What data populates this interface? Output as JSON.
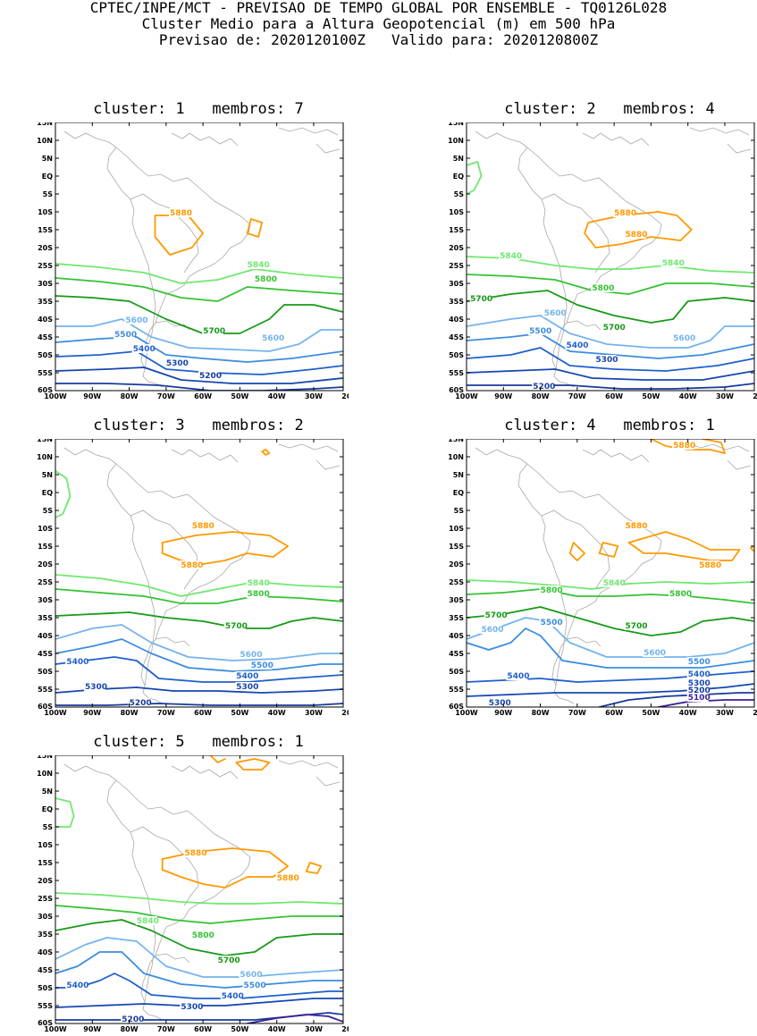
{
  "header": {
    "line1": "CPTEC/INPE/MCT - PREVISAO DE TEMPO GLOBAL POR ENSEMBLE - TQ0126L028",
    "line2": "Cluster Medio para a Altura Geopotencial (m) em 500 hPa",
    "line3": "Previsao de: 2020120100Z   Valido para: 2020120800Z"
  },
  "axes": {
    "lat_labels": [
      "15N",
      "10N",
      "5N",
      "EQ",
      "5S",
      "10S",
      "15S",
      "20S",
      "25S",
      "30S",
      "35S",
      "40S",
      "45S",
      "50S",
      "55S",
      "60S"
    ],
    "lon_labels": [
      "100W",
      "90W",
      "80W",
      "70W",
      "60W",
      "50W",
      "40W",
      "30W",
      "20W"
    ]
  },
  "colors": {
    "5880": "#ff9900",
    "5840": "#6fe86f",
    "5800": "#35c235",
    "5700": "#169a16",
    "5600": "#74b4ee",
    "5500": "#3c8ce0",
    "5400": "#1f5fcc",
    "5300": "#1646b0",
    "5200": "#173a9c",
    "5100": "#3b1f96",
    "coast": "#a8a8a8"
  },
  "panels": [
    {
      "title": "cluster: 1   membros: 7",
      "contour_labels": [
        {
          "text": "5880",
          "level": "5880"
        },
        {
          "text": "5840",
          "level": "5840"
        },
        {
          "text": "5800",
          "level": "5800"
        },
        {
          "text": "5700",
          "level": "5700"
        },
        {
          "text": "5600",
          "level": "5600"
        },
        {
          "text": "5600",
          "level": "5600"
        },
        {
          "text": "5500",
          "level": "5500"
        },
        {
          "text": "5400",
          "level": "5400"
        },
        {
          "text": "5300",
          "level": "5300"
        },
        {
          "text": "5200",
          "level": "5200"
        }
      ]
    },
    {
      "title": "cluster: 2   membros: 4",
      "contour_labels": [
        {
          "text": "5880",
          "level": "5880"
        },
        {
          "text": "5880",
          "level": "5880"
        },
        {
          "text": "5840",
          "level": "5840"
        },
        {
          "text": "5840",
          "level": "5840"
        },
        {
          "text": "5800",
          "level": "5800"
        },
        {
          "text": "5700",
          "level": "5700"
        },
        {
          "text": "5700",
          "level": "5700"
        },
        {
          "text": "5600",
          "level": "5600"
        },
        {
          "text": "5600",
          "level": "5600"
        },
        {
          "text": "5500",
          "level": "5500"
        },
        {
          "text": "5400",
          "level": "5400"
        },
        {
          "text": "5300",
          "level": "5300"
        },
        {
          "text": "5200",
          "level": "5200"
        }
      ]
    },
    {
      "title": "cluster: 3   membros: 2",
      "contour_labels": [
        {
          "text": "5880",
          "level": "5880"
        },
        {
          "text": "5880",
          "level": "5880"
        },
        {
          "text": "5840",
          "level": "5840"
        },
        {
          "text": "5800",
          "level": "5800"
        },
        {
          "text": "5700",
          "level": "5700"
        },
        {
          "text": "5600",
          "level": "5600"
        },
        {
          "text": "5500",
          "level": "5500"
        },
        {
          "text": "5400",
          "level": "5400"
        },
        {
          "text": "5400",
          "level": "5400"
        },
        {
          "text": "5300",
          "level": "5300"
        },
        {
          "text": "5300",
          "level": "5300"
        },
        {
          "text": "5200",
          "level": "5200"
        }
      ]
    },
    {
      "title": "cluster: 4   membros: 1",
      "contour_labels": [
        {
          "text": "5880",
          "level": "5880"
        },
        {
          "text": "5880",
          "level": "5880"
        },
        {
          "text": "5880",
          "level": "5880"
        },
        {
          "text": "5840",
          "level": "5840"
        },
        {
          "text": "5800",
          "level": "5800"
        },
        {
          "text": "5800",
          "level": "5800"
        },
        {
          "text": "5700",
          "level": "5700"
        },
        {
          "text": "5700",
          "level": "5700"
        },
        {
          "text": "5600",
          "level": "5600"
        },
        {
          "text": "5600",
          "level": "5600"
        },
        {
          "text": "5500",
          "level": "5500"
        },
        {
          "text": "5500",
          "level": "5500"
        },
        {
          "text": "5400",
          "level": "5400"
        },
        {
          "text": "5400",
          "level": "5400"
        },
        {
          "text": "5300",
          "level": "5300"
        },
        {
          "text": "5300",
          "level": "5300"
        },
        {
          "text": "5200",
          "level": "5200"
        },
        {
          "text": "5100",
          "level": "5100"
        }
      ]
    },
    {
      "title": "cluster: 5   membros: 1",
      "contour_labels": [
        {
          "text": "5880",
          "level": "5880"
        },
        {
          "text": "5880",
          "level": "5880"
        },
        {
          "text": "5840",
          "level": "5840"
        },
        {
          "text": "5800",
          "level": "5800"
        },
        {
          "text": "5700",
          "level": "5700"
        },
        {
          "text": "5600",
          "level": "5600"
        },
        {
          "text": "5500",
          "level": "5500"
        },
        {
          "text": "5400",
          "level": "5400"
        },
        {
          "text": "5400",
          "level": "5400"
        },
        {
          "text": "5300",
          "level": "5300"
        },
        {
          "text": "5200",
          "level": "5200"
        }
      ]
    }
  ]
}
